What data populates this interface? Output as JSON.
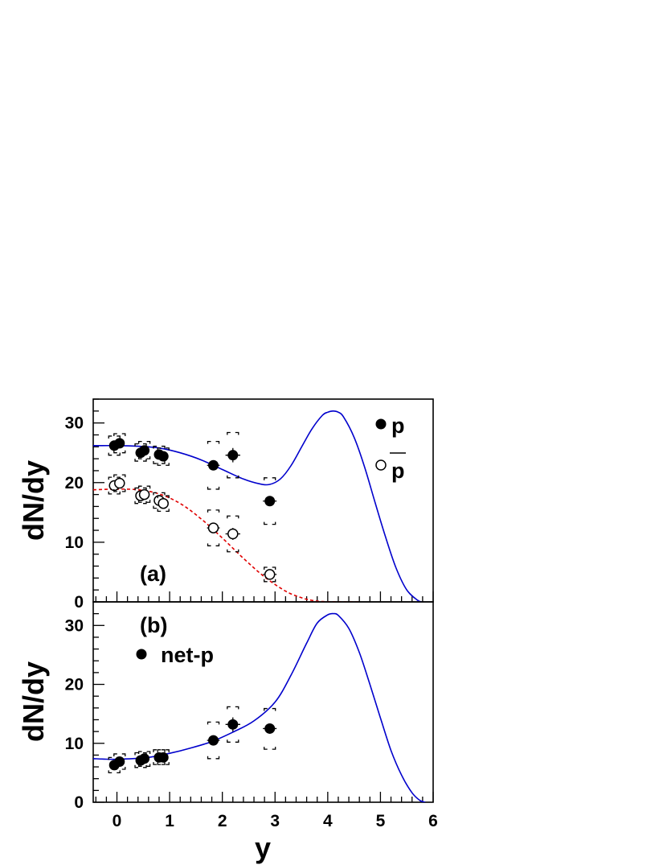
{
  "chart_data": [
    {
      "type": "scatter",
      "panel_label": "(a)",
      "ylabel": "dN/dy",
      "xlim": [
        -0.45,
        6.0
      ],
      "ylim": [
        0,
        34
      ],
      "x_ticks": [
        0,
        1,
        2,
        3,
        4,
        5,
        6
      ],
      "y_ticks": [
        0,
        10,
        20,
        30
      ],
      "legend": [
        {
          "label": "p",
          "marker": "filled-circle"
        },
        {
          "label": "p",
          "marker": "open-circle",
          "overline": true
        }
      ],
      "series": [
        {
          "name": "p",
          "marker": "filled-circle",
          "points": [
            {
              "x": -0.05,
              "y": 26.2,
              "sys_lo": 24.6,
              "sys_hi": 27.8
            },
            {
              "x": 0.05,
              "y": 26.6,
              "sys_lo": 25.0,
              "sys_hi": 28.2
            },
            {
              "x": 0.45,
              "y": 25.0,
              "sys_lo": 23.6,
              "sys_hi": 26.5
            },
            {
              "x": 0.52,
              "y": 25.4,
              "sys_lo": 24.0,
              "sys_hi": 26.9
            },
            {
              "x": 0.8,
              "y": 24.7,
              "sys_lo": 23.2,
              "sys_hi": 26.1
            },
            {
              "x": 0.88,
              "y": 24.4,
              "sys_lo": 22.9,
              "sys_hi": 25.8
            },
            {
              "x": 1.83,
              "y": 22.9,
              "xerr": 0.12,
              "sys_lo": 18.9,
              "sys_hi": 26.9
            },
            {
              "x": 2.2,
              "y": 24.6,
              "xerr": 0.14,
              "yerr": 1.2,
              "sys_lo": 20.8,
              "sys_hi": 28.4
            },
            {
              "x": 2.9,
              "y": 16.9,
              "xerr": 0.13,
              "sys_lo": 13.0,
              "sys_hi": 20.8
            }
          ]
        },
        {
          "name": "p",
          "marker": "open-circle",
          "points": [
            {
              "x": -0.05,
              "y": 19.5,
              "sys_lo": 18.1,
              "sys_hi": 20.9
            },
            {
              "x": 0.05,
              "y": 19.9,
              "sys_lo": 18.5,
              "sys_hi": 21.3
            },
            {
              "x": 0.45,
              "y": 17.8,
              "sys_lo": 16.5,
              "sys_hi": 19.1
            },
            {
              "x": 0.52,
              "y": 18.0,
              "sys_lo": 16.7,
              "sys_hi": 19.4
            },
            {
              "x": 0.8,
              "y": 17.0,
              "sys_lo": 15.7,
              "sys_hi": 18.3
            },
            {
              "x": 0.88,
              "y": 16.5,
              "sys_lo": 15.2,
              "sys_hi": 17.8
            },
            {
              "x": 1.83,
              "y": 12.4,
              "xerr": 0.12,
              "sys_lo": 9.4,
              "sys_hi": 15.4
            },
            {
              "x": 2.2,
              "y": 11.4,
              "xerr": 0.14,
              "yerr": 1.0,
              "sys_lo": 8.4,
              "sys_hi": 14.4
            },
            {
              "x": 2.9,
              "y": 4.6,
              "xerr": 0.13,
              "sys_lo": 3.4,
              "sys_hi": 5.8
            }
          ]
        }
      ],
      "curves": [
        {
          "series": "p",
          "color": "#0000cc",
          "style": "solid",
          "x": [
            -0.45,
            0,
            0.4,
            0.8,
            1.2,
            1.6,
            2.0,
            2.4,
            2.7,
            2.9,
            3.1,
            3.3,
            3.5,
            3.7,
            3.9,
            4.0,
            4.1,
            4.2,
            4.3,
            4.5,
            4.7,
            4.9,
            5.1,
            5.3,
            5.5,
            5.7,
            5.78
          ],
          "y": [
            26.2,
            26.2,
            26.1,
            25.8,
            25.0,
            23.8,
            22.2,
            20.6,
            19.8,
            19.7,
            20.6,
            22.8,
            25.9,
            29.0,
            31.3,
            31.8,
            32.0,
            31.8,
            31.0,
            27.6,
            22.6,
            16.6,
            10.8,
            5.6,
            2.0,
            0.3,
            0
          ]
        },
        {
          "series": "pbar",
          "color": "#e00000",
          "style": "dashed",
          "x": [
            -0.45,
            0,
            0.4,
            0.8,
            1.2,
            1.6,
            2.0,
            2.4,
            2.8,
            3.2,
            3.5,
            3.7,
            3.9,
            4.2,
            4.6
          ],
          "y": [
            18.8,
            18.9,
            18.8,
            18.1,
            16.5,
            13.9,
            10.7,
            7.3,
            4.2,
            1.8,
            0.7,
            0.25,
            0.05,
            0,
            0
          ]
        }
      ]
    },
    {
      "type": "scatter",
      "panel_label": "(b)",
      "ylabel": "dN/dy",
      "xlabel": "y",
      "xlim": [
        -0.45,
        6.0
      ],
      "ylim": [
        0,
        34
      ],
      "x_ticks": [
        0,
        1,
        2,
        3,
        4,
        5,
        6
      ],
      "y_ticks": [
        0,
        10,
        20,
        30
      ],
      "legend": [
        {
          "label": "net-p",
          "marker": "filled-circle"
        }
      ],
      "series": [
        {
          "name": "net-p",
          "marker": "filled-circle",
          "points": [
            {
              "x": -0.05,
              "y": 6.3,
              "sys_lo": 5.0,
              "sys_hi": 7.6
            },
            {
              "x": 0.05,
              "y": 6.9,
              "sys_lo": 5.6,
              "sys_hi": 8.2
            },
            {
              "x": 0.45,
              "y": 7.1,
              "sys_lo": 5.9,
              "sys_hi": 8.4
            },
            {
              "x": 0.52,
              "y": 7.4,
              "sys_lo": 6.1,
              "sys_hi": 8.6
            },
            {
              "x": 0.8,
              "y": 7.6,
              "sys_lo": 6.4,
              "sys_hi": 8.9
            },
            {
              "x": 0.88,
              "y": 7.6,
              "sys_lo": 6.4,
              "sys_hi": 8.9
            },
            {
              "x": 1.83,
              "y": 10.5,
              "xerr": 0.12,
              "sys_lo": 7.4,
              "sys_hi": 13.6
            },
            {
              "x": 2.2,
              "y": 13.2,
              "xerr": 0.14,
              "yerr": 1.2,
              "sys_lo": 10.2,
              "sys_hi": 16.2
            },
            {
              "x": 2.9,
              "y": 12.5,
              "xerr": 0.13,
              "sys_lo": 9.0,
              "sys_hi": 15.9
            }
          ]
        }
      ],
      "curves": [
        {
          "series": "net-p",
          "color": "#0000cc",
          "style": "solid",
          "x": [
            -0.45,
            -0.2,
            0,
            0.3,
            0.6,
            1.0,
            1.4,
            1.8,
            2.2,
            2.6,
            3.0,
            3.3,
            3.6,
            3.8,
            4.0,
            4.1,
            4.2,
            4.4,
            4.6,
            4.8,
            5.0,
            5.2,
            5.4,
            5.6,
            5.75,
            5.85
          ],
          "y": [
            7.4,
            7.3,
            7.3,
            7.4,
            7.6,
            8.3,
            9.2,
            10.3,
            11.9,
            13.8,
            17.0,
            21.5,
            27.0,
            30.4,
            31.8,
            32.0,
            31.7,
            29.5,
            25.4,
            20.0,
            14.3,
            8.8,
            4.6,
            1.6,
            0.3,
            0
          ]
        }
      ]
    }
  ]
}
